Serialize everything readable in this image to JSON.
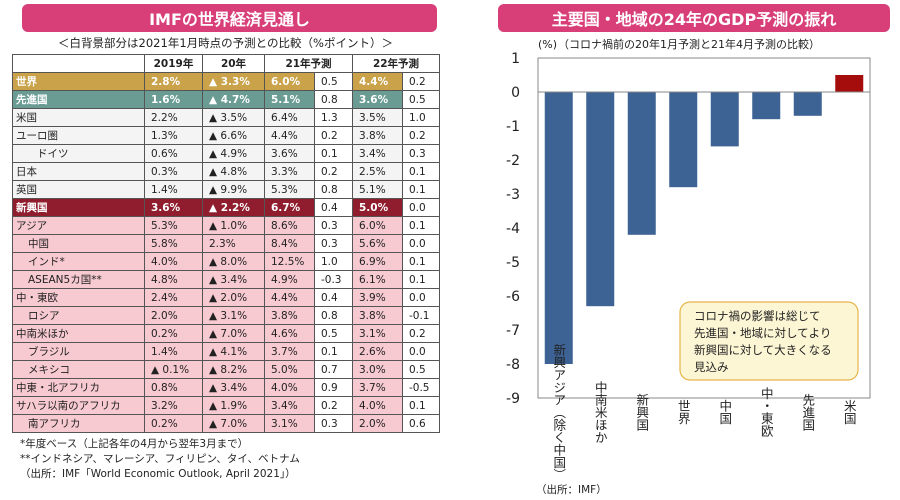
{
  "left": {
    "title": "IMFの世界経済見通し",
    "subtitle": "＜白背景部分は2021年1月時点の予測との比較（%ポイント）＞",
    "headers": [
      "",
      "2019年",
      "20年",
      "21年予測",
      "",
      "22年予測",
      ""
    ],
    "rows": [
      {
        "cls": "world",
        "indent": 0,
        "name": "世界",
        "y19": "2.8%",
        "y20": "▲ 3.3%",
        "y21": "6.0%",
        "d21": "0.5",
        "y22": "4.4%",
        "d22": "0.2"
      },
      {
        "cls": "adv",
        "indent": 0,
        "name": "先進国",
        "y19": "1.6%",
        "y20": "▲ 4.7%",
        "y21": "5.1%",
        "d21": "0.8",
        "y22": "3.6%",
        "d22": "0.5"
      },
      {
        "cls": "advsub",
        "indent": 0,
        "name": "米国",
        "y19": "2.2%",
        "y20": "▲ 3.5%",
        "y21": "6.4%",
        "d21": "1.3",
        "y22": "3.5%",
        "d22": "1.0"
      },
      {
        "cls": "advsub",
        "indent": 0,
        "name": "ユーロ圏",
        "y19": "1.3%",
        "y20": "▲ 6.6%",
        "y21": "4.4%",
        "d21": "0.2",
        "y22": "3.8%",
        "d22": "0.2"
      },
      {
        "cls": "advsub",
        "indent": 2,
        "name": "ドイツ",
        "y19": "0.6%",
        "y20": "▲ 4.9%",
        "y21": "3.6%",
        "d21": "0.1",
        "y22": "3.4%",
        "d22": "0.3"
      },
      {
        "cls": "advsub",
        "indent": 0,
        "name": "日本",
        "y19": "0.3%",
        "y20": "▲ 4.8%",
        "y21": "3.3%",
        "d21": "0.2",
        "y22": "2.5%",
        "d22": "0.1"
      },
      {
        "cls": "advsub",
        "indent": 0,
        "name": "英国",
        "y19": "1.4%",
        "y20": "▲ 9.9%",
        "y21": "5.3%",
        "d21": "0.8",
        "y22": "5.1%",
        "d22": "0.1"
      },
      {
        "cls": "emg",
        "indent": 0,
        "name": "新興国",
        "y19": "3.6%",
        "y20": "▲ 2.2%",
        "y21": "6.7%",
        "d21": "0.4",
        "y22": "5.0%",
        "d22": "0.0"
      },
      {
        "cls": "emgsub",
        "indent": 0,
        "name": "アジア",
        "y19": "5.3%",
        "y20": "▲ 1.0%",
        "y21": "8.6%",
        "d21": "0.3",
        "y22": "6.0%",
        "d22": "0.1"
      },
      {
        "cls": "emgsub",
        "indent": 1,
        "name": "中国",
        "y19": "5.8%",
        "y20": "2.3%",
        "y21": "8.4%",
        "d21": "0.3",
        "y22": "5.6%",
        "d22": "0.0"
      },
      {
        "cls": "emgsub",
        "indent": 1,
        "name": "インド*",
        "y19": "4.0%",
        "y20": "▲ 8.0%",
        "y21": "12.5%",
        "d21": "1.0",
        "y22": "6.9%",
        "d22": "0.1"
      },
      {
        "cls": "emgsub",
        "indent": 1,
        "name": "ASEAN5カ国**",
        "y19": "4.8%",
        "y20": "▲ 3.4%",
        "y21": "4.9%",
        "d21": "-0.3",
        "y22": "6.1%",
        "d22": "0.1"
      },
      {
        "cls": "emgsub",
        "indent": 0,
        "name": "中・東欧",
        "y19": "2.4%",
        "y20": "▲ 2.0%",
        "y21": "4.4%",
        "d21": "0.4",
        "y22": "3.9%",
        "d22": "0.0"
      },
      {
        "cls": "emgsub",
        "indent": 1,
        "name": "ロシア",
        "y19": "2.0%",
        "y20": "▲ 3.1%",
        "y21": "3.8%",
        "d21": "0.8",
        "y22": "3.8%",
        "d22": "-0.1"
      },
      {
        "cls": "emgsub",
        "indent": 0,
        "name": "中南米ほか",
        "y19": "0.2%",
        "y20": "▲ 7.0%",
        "y21": "4.6%",
        "d21": "0.5",
        "y22": "3.1%",
        "d22": "0.2"
      },
      {
        "cls": "emgsub",
        "indent": 1,
        "name": "ブラジル",
        "y19": "1.4%",
        "y20": "▲ 4.1%",
        "y21": "3.7%",
        "d21": "0.1",
        "y22": "2.6%",
        "d22": "0.0"
      },
      {
        "cls": "emgsub",
        "indent": 1,
        "name": "メキシコ",
        "y19": "▲ 0.1%",
        "y20": "▲ 8.2%",
        "y21": "5.0%",
        "d21": "0.7",
        "y22": "3.0%",
        "d22": "0.5"
      },
      {
        "cls": "emgsub",
        "indent": 0,
        "name": "中東・北アフリカ",
        "y19": "0.8%",
        "y20": "▲ 3.4%",
        "y21": "4.0%",
        "d21": "0.9",
        "y22": "3.7%",
        "d22": "-0.5"
      },
      {
        "cls": "emgsub",
        "indent": 0,
        "name": "サハラ以南のアフリカ",
        "y19": "3.2%",
        "y20": "▲ 1.9%",
        "y21": "3.4%",
        "d21": "0.2",
        "y22": "4.0%",
        "d22": "0.1"
      },
      {
        "cls": "emgsub",
        "indent": 1,
        "name": "南アフリカ",
        "y19": "0.2%",
        "y20": "▲ 7.0%",
        "y21": "3.1%",
        "d21": "0.3",
        "y22": "2.0%",
        "d22": "0.6"
      }
    ],
    "notes": [
      "*年度ベース（上記各年の4月から翌年3月まで）",
      "**インドネシア、マレーシア、フィリピン、タイ、ベトナム",
      "（出所：IMF「World Economic Outlook, April 2021」）"
    ]
  },
  "right": {
    "title": "主要国・地域の24年のGDP予測の振れ",
    "unit": "(%)",
    "subtitle": "（コロナ禍前の20年1月予測と21年4月予測の比較）",
    "annotation": [
      "コロナ禍の影響は総じて",
      "先進国・地域に対してより",
      "新興国に対して大きくなる",
      "見込み"
    ],
    "source": "（出所：IMF）"
  },
  "chart_data": {
    "type": "bar",
    "categories": [
      "新興アジア（除く中国）",
      "中南米ほか",
      "新興国",
      "世界",
      "中国",
      "中・東欧",
      "先進国",
      "米国"
    ],
    "values": [
      -8.0,
      -6.3,
      -4.2,
      -2.8,
      -1.6,
      -0.8,
      -0.7,
      0.5
    ],
    "ylim": [
      -9,
      1
    ],
    "yticks": [
      1,
      0,
      -1,
      -2,
      -3,
      -4,
      -5,
      -6,
      -7,
      -8,
      -9
    ],
    "colors": {
      "negative": "#3d6294",
      "positive": "#a50d0d"
    },
    "grid": false
  }
}
